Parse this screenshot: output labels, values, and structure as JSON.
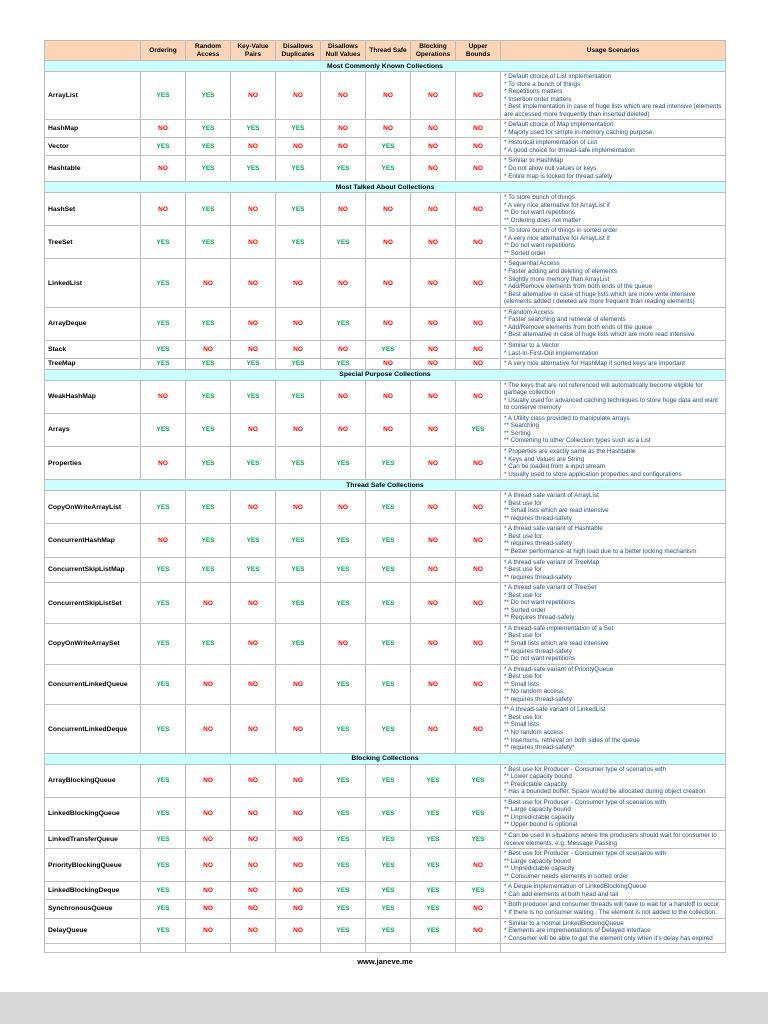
{
  "page": {
    "footer": "www.janeve.me"
  },
  "colors": {
    "yes": "#00A651",
    "no": "#FF0000",
    "header_bg": "#FBD5B5",
    "section_bg": "#CCFFFF",
    "usage_text": "#1F497D"
  },
  "table": {
    "columns": [
      "",
      "Ordering",
      "Random Access",
      "Key-Value Pairs",
      "Disallows Duplicates",
      "Disallows Null Values",
      "Thread Safe",
      "Blocking Operations",
      "Upper Bounds",
      "Usage Scenarios"
    ],
    "sections": [
      {
        "title": "Most Commonly Known Collections",
        "rows": [
          {
            "name": "ArrayList",
            "flags": [
              "YES",
              "YES",
              "NO",
              "NO",
              "NO",
              "NO",
              "NO",
              "NO"
            ],
            "usage": [
              "* Default choice of List implementation",
              "* To store a bunch of things",
              "* Repetitions matters",
              "* Insertion order matters",
              "* Best implementation in case of huge lists which are read intensive (elements are accessed more frequently than inserted deleted)"
            ]
          },
          {
            "name": "HashMap",
            "flags": [
              "NO",
              "YES",
              "YES",
              "YES",
              "NO",
              "NO",
              "NO",
              "NO"
            ],
            "usage": [
              "* Default choice of Map implementation",
              "* Majorly used for simple in-memory caching purpose."
            ]
          },
          {
            "name": "Vector",
            "flags": [
              "YES",
              "YES",
              "NO",
              "NO",
              "NO",
              "YES",
              "NO",
              "NO"
            ],
            "usage": [
              "* Historical implementation of List",
              "* A good choice for thread-safe implementation"
            ]
          },
          {
            "name": "Hashtable",
            "flags": [
              "NO",
              "YES",
              "YES",
              "YES",
              "YES",
              "YES",
              "NO",
              "NO"
            ],
            "usage": [
              "* Similar to HashMap",
              "* Do not allow null values or keys",
              "* Entire map is locked for thread safety"
            ]
          }
        ]
      },
      {
        "title": "Most Talked About Collections",
        "rows": [
          {
            "name": "HashSet",
            "flags": [
              "NO",
              "YES",
              "NO",
              "YES",
              "NO",
              "NO",
              "NO",
              "NO"
            ],
            "usage": [
              "* To store bunch of things",
              "* A very nice alternative for ArrayList if",
              "** Do not want repetitions",
              "** Ordering does not matter"
            ]
          },
          {
            "name": "TreeSet",
            "flags": [
              "YES",
              "YES",
              "NO",
              "YES",
              "YES",
              "NO",
              "NO",
              "NO"
            ],
            "usage": [
              "* To store bunch of things in sorted order",
              "* A very nice alternative for ArrayList if",
              "** Do not want repetitions",
              "** Sorted order"
            ]
          },
          {
            "name": "LinkedList",
            "flags": [
              "YES",
              "NO",
              "NO",
              "NO",
              "NO",
              "NO",
              "NO",
              "NO"
            ],
            "usage": [
              "* Sequential Access",
              "* Faster adding and deleting of elements",
              "* Slightly more memory than ArrayList",
              "* Add/Remove elements from both ends of the queue",
              "* Best alternative in case of huge lists which are more write intensive (elements added / deleted are more frequent than reading elements)"
            ]
          },
          {
            "name": "ArrayDeque",
            "flags": [
              "YES",
              "YES",
              "NO",
              "NO",
              "YES",
              "NO",
              "NO",
              "NO"
            ],
            "usage": [
              "* Random Access",
              "* Faster searching and retrieval of elements",
              "* Add/Remove elements from both ends of the queue",
              "* Best alternative in case of huge lists which are more read intensive"
            ]
          },
          {
            "name": "Stack",
            "flags": [
              "YES",
              "NO",
              "NO",
              "NO",
              "NO",
              "YES",
              "NO",
              "NO"
            ],
            "usage": [
              "* Similar to a Vector",
              "* Last-In-First-Out implementation"
            ]
          },
          {
            "name": "TreeMap",
            "flags": [
              "YES",
              "YES",
              "YES",
              "YES",
              "YES",
              "NO",
              "NO",
              "NO"
            ],
            "usage": [
              "* A very nice alternative for HashMap if sorted keys are important"
            ]
          }
        ]
      },
      {
        "title": "Special Purpose Collections",
        "rows": [
          {
            "name": "WeakHashMap",
            "flags": [
              "NO",
              "YES",
              "YES",
              "YES",
              "NO",
              "NO",
              "NO",
              "NO"
            ],
            "usage": [
              "* The keys that are not referenced will automatically become eligible for garbage collection",
              "* Usually used for advanced caching techniques to store huge data and want to conserve memory"
            ]
          },
          {
            "name": "Arrays",
            "flags": [
              "YES",
              "YES",
              "NO",
              "NO",
              "NO",
              "NO",
              "NO",
              "YES"
            ],
            "usage": [
              "* A Utility class provided to manipulate arrays",
              "** Searching",
              "** Sorting",
              "** Converting to other Collection types such as a List"
            ]
          },
          {
            "name": "Properties",
            "flags": [
              "NO",
              "YES",
              "YES",
              "YES",
              "YES",
              "YES",
              "NO",
              "NO"
            ],
            "usage": [
              "* Properties are exactly same as the Hashtable",
              "* Keys and Values are String",
              "* Can be loaded from a input stream",
              "* Usually used to store application properties and configurations"
            ]
          }
        ]
      },
      {
        "title": "Thread Safe Collections",
        "rows": [
          {
            "name": "CopyOnWriteArrayList",
            "flags": [
              "YES",
              "YES",
              "NO",
              "NO",
              "NO",
              "YES",
              "NO",
              "NO"
            ],
            "usage": [
              "* A thread safe variant of ArrayList",
              "* Best use for",
              "** Small lists which are read intensive",
              "** requires thread-safety"
            ]
          },
          {
            "name": "ConcurrentHashMap",
            "flags": [
              "NO",
              "YES",
              "YES",
              "YES",
              "YES",
              "YES",
              "NO",
              "NO"
            ],
            "usage": [
              "* A thread safe variant of Hashtable",
              "* Best use for",
              "** requires thread-safety",
              "** Better performance at high load due to a better locking mechanism"
            ]
          },
          {
            "name": "ConcurrentSkipListMap",
            "flags": [
              "YES",
              "YES",
              "YES",
              "YES",
              "YES",
              "YES",
              "NO",
              "NO"
            ],
            "usage": [
              "* A thread safe variant of TreeMap",
              "* Best use for",
              "** requires thread-safety"
            ]
          },
          {
            "name": "ConcurrentSkipListSet",
            "flags": [
              "YES",
              "NO",
              "NO",
              "YES",
              "YES",
              "YES",
              "NO",
              "NO"
            ],
            "usage": [
              "* A thread safe variant of TreeSet",
              "* Best use for",
              "** Do not want repetitions",
              "** Sorted order",
              "** Requires thread-safety"
            ]
          },
          {
            "name": "CopyOnWriteArraySet",
            "flags": [
              "YES",
              "YES",
              "NO",
              "YES",
              "NO",
              "YES",
              "NO",
              "NO"
            ],
            "usage": [
              "* A thread-safe implementation of a Set",
              "* Best use for",
              "** Small lists which are read intensive",
              "** requires thread-safety",
              "** Do not want repetitions"
            ]
          },
          {
            "name": "ConcurrentLinkedQueue",
            "flags": [
              "YES",
              "NO",
              "NO",
              "NO",
              "YES",
              "YES",
              "NO",
              "NO"
            ],
            "usage": [
              "* A thread-safe variant of PriorityQueue",
              "* Best use for",
              "** Small lists",
              "** No random access",
              "** requires thread-safety"
            ]
          },
          {
            "name": "ConcurrentLinkedDeque",
            "flags": [
              "YES",
              "NO",
              "NO",
              "NO",
              "YES",
              "YES",
              "NO",
              "NO"
            ],
            "usage": [
              "** A thread-safe variant of LinkedList",
              "* Best use for",
              "** Small lists",
              "** No random access",
              "** Insertions, retrieval on both sides of the queue",
              "** requires thread-safety*"
            ]
          }
        ]
      },
      {
        "title": "Blocking Collections",
        "rows": [
          {
            "name": "ArrayBlockingQueue",
            "flags": [
              "YES",
              "NO",
              "NO",
              "NO",
              "YES",
              "YES",
              "YES",
              "YES"
            ],
            "usage": [
              "* Best use for Producer - Consumer type of scenarios with",
              "** Lower capacity bound",
              "** Predictable capacity",
              "* Has a bounded buffer. Space would be allocated during object creation"
            ]
          },
          {
            "name": "LinkedBlockingQueue",
            "flags": [
              "YES",
              "NO",
              "NO",
              "NO",
              "YES",
              "YES",
              "YES",
              "YES"
            ],
            "usage": [
              "* Best use for Producer - Consumer type of scenarios with",
              "** Large capacity bound",
              "** Unpredictable capacity",
              "** Upper bound is optional"
            ]
          },
          {
            "name": "LinkedTransferQueue",
            "flags": [
              "YES",
              "NO",
              "NO",
              "NO",
              "YES",
              "YES",
              "YES",
              "YES"
            ],
            "usage": [
              "* Can be used in situations where the producers should wait for consumer to receive elements. e.g. Message Passing"
            ]
          },
          {
            "name": "PriorityBlockingQueue",
            "flags": [
              "YES",
              "NO",
              "NO",
              "NO",
              "YES",
              "YES",
              "YES",
              "NO"
            ],
            "usage": [
              "* Best use for Producer - Consumer type of scenarios with",
              "** Large capacity bound",
              "** Unpredictable capacity",
              "** Consumer needs elements in sorted order"
            ]
          },
          {
            "name": "LinkedBlockingDeque",
            "flags": [
              "YES",
              "NO",
              "NO",
              "NO",
              "YES",
              "YES",
              "YES",
              "YES"
            ],
            "usage": [
              "* A Deque implementation of LinkedBlockingQueue",
              "* Can add elements at both head and tail"
            ]
          },
          {
            "name": "SynchronousQueue",
            "flags": [
              "YES",
              "NO",
              "NO",
              "NO",
              "YES",
              "YES",
              "YES",
              "NO"
            ],
            "usage": [
              "* Both producer and consumer threads will have to wait for a handoff to occur.",
              "* If there is no consumer waiting . The element is not added to the collection."
            ]
          },
          {
            "name": "DelayQueue",
            "flags": [
              "YES",
              "NO",
              "NO",
              "NO",
              "YES",
              "YES",
              "YES",
              "NO"
            ],
            "usage": [
              "* Similar to a normal LinkedBlockingQueue",
              "* Elements are implementations of Delayed interface",
              "* Consumer will be able to get the element only when it's delay has expired"
            ]
          }
        ]
      }
    ]
  }
}
